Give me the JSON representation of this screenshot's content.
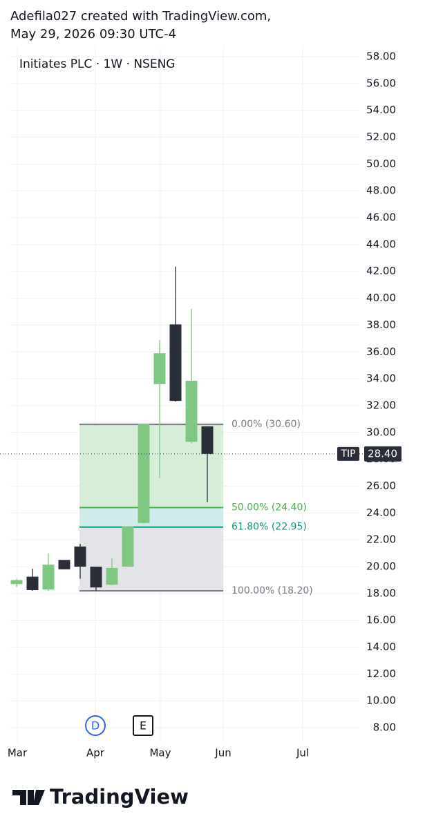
{
  "header": {
    "line1": "Adefila027 created with TradingView.com,",
    "line2": "May 29, 2026 09:30 UTC-4"
  },
  "chart_data": {
    "type": "candlestick",
    "title": "Initiates PLC · 1W · NSENG",
    "open": [
      18.7,
      19.25,
      18.3,
      20.5,
      21.5,
      20.0,
      18.65,
      20.0,
      23.25,
      33.6,
      38.05,
      29.3,
      30.45
    ],
    "high": [
      19.1,
      19.85,
      21.0,
      20.5,
      21.7,
      20.0,
      20.6,
      23.0,
      30.65,
      36.9,
      42.35,
      39.2,
      30.45
    ],
    "low": [
      18.5,
      18.2,
      18.2,
      19.8,
      19.1,
      18.2,
      18.6,
      20.0,
      23.2,
      26.6,
      32.3,
      29.2,
      24.8
    ],
    "close": [
      19.0,
      18.25,
      20.15,
      19.8,
      20.0,
      18.45,
      19.9,
      23.0,
      30.65,
      35.9,
      32.35,
      33.85,
      28.4
    ],
    "up_color": "#81c784",
    "down_color": "#2a2e39",
    "ylim": [
      6.87,
      58.72
    ],
    "yticks": [
      {
        "value": 8,
        "label": "8.00"
      },
      {
        "value": 10,
        "label": "10.00"
      },
      {
        "value": 12,
        "label": "12.00"
      },
      {
        "value": 14,
        "label": "14.00"
      },
      {
        "value": 16,
        "label": "16.00"
      },
      {
        "value": 18,
        "label": "18.00"
      },
      {
        "value": 20,
        "label": "20.00"
      },
      {
        "value": 22,
        "label": "22.00"
      },
      {
        "value": 24,
        "label": "24.00"
      },
      {
        "value": 26,
        "label": "26.00"
      },
      {
        "value": 28,
        "label": "28.00"
      },
      {
        "value": 30,
        "label": "30.00"
      },
      {
        "value": 32,
        "label": "32.00"
      },
      {
        "value": 34,
        "label": "34.00"
      },
      {
        "value": 36,
        "label": "36.00"
      },
      {
        "value": 38,
        "label": "38.00"
      },
      {
        "value": 40,
        "label": "40.00"
      },
      {
        "value": 42,
        "label": "42.00"
      },
      {
        "value": 44,
        "label": "44.00"
      },
      {
        "value": 46,
        "label": "46.00"
      },
      {
        "value": 48,
        "label": "48.00"
      },
      {
        "value": 50,
        "label": "50.00"
      },
      {
        "value": 52,
        "label": "52.00"
      },
      {
        "value": 54,
        "label": "54.00"
      },
      {
        "value": 56,
        "label": "56.00"
      },
      {
        "value": 58,
        "label": "58.00"
      }
    ],
    "grid": true,
    "xtick_labels": [
      "Mar",
      "Apr",
      "May",
      "Jun",
      "Jul"
    ],
    "fib_levels": [
      {
        "label": "0.00% (30.60)",
        "value": 30.6,
        "color": "#787b86"
      },
      {
        "label": "50.00% (24.40)",
        "value": 24.4,
        "color": "#4caf50",
        "zone_color": "#d7efd9"
      },
      {
        "label": "61.80% (22.95)",
        "value": 22.95,
        "color": "#089981",
        "zone_color": "#cfecea"
      },
      {
        "label": "100.00% (18.20)",
        "value": 18.2,
        "color": "#787b86",
        "zone_color": "#e3e4e7"
      }
    ],
    "last_price": {
      "label": "TIP",
      "value": 28.4,
      "value_label": "28.40"
    },
    "events": [
      "D",
      "E"
    ]
  },
  "footer": {
    "brand": "TradingView"
  }
}
